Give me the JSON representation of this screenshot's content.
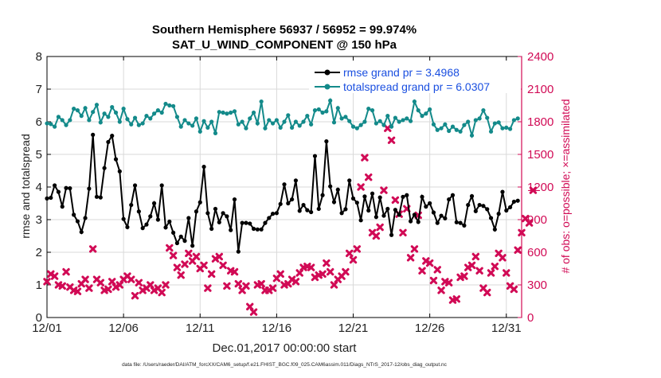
{
  "chart_data": {
    "type": "line",
    "title": [
      "Southern Hemisphere 56937 / 56952 = 99.974%",
      "SAT_U_WIND_COMPONENT @ 150 hPa"
    ],
    "xlabel": "Dec.01,2017 00:00:00 start",
    "ylabel_left": "rmse and totalspread",
    "ylabel_right": "# of obs: o=possible; ×=assimilated",
    "footnote": "data file: /Users/raeder/DAI/ATM_forcXX/CAM6_setup/f.e21.FHIST_BGC.f09_025.CAM6assim.011/Diags_NTrS_2017-12/obs_diag_output.nc",
    "xlim": [
      1,
      32
    ],
    "ylim_left": [
      0,
      8
    ],
    "ylim_right": [
      0,
      2400
    ],
    "grid": true,
    "legend_position": "top-right",
    "x_ticks": [
      1,
      6,
      11,
      16,
      21,
      26,
      31
    ],
    "x_tick_labels": [
      "12/01",
      "12/06",
      "12/11",
      "12/16",
      "12/21",
      "12/26",
      "12/31"
    ],
    "y_ticks_left": [
      0,
      1,
      2,
      3,
      4,
      5,
      6,
      7,
      8
    ],
    "y_ticks_right": [
      0,
      300,
      600,
      900,
      1200,
      1500,
      1800,
      2100,
      2400
    ],
    "series": [
      {
        "name": "rmse grand pr = 3.4968",
        "axis": "left",
        "color": "#000000",
        "x_start": 1.0,
        "x_step": 0.25,
        "values": [
          3.65,
          3.67,
          4.05,
          3.85,
          3.4,
          3.97,
          3.96,
          3.15,
          2.95,
          2.62,
          3.05,
          3.95,
          5.6,
          3.7,
          3.68,
          4.58,
          5.38,
          5.57,
          4.85,
          4.48,
          3.02,
          2.77,
          3.45,
          4.05,
          3.25,
          2.74,
          2.85,
          3.1,
          3.5,
          3.0,
          4.05,
          2.76,
          2.94,
          2.6,
          2.28,
          2.48,
          2.35,
          3.05,
          2.2,
          3.25,
          3.53,
          4.62,
          3.2,
          2.72,
          3.33,
          2.92,
          3.2,
          3.1,
          2.68,
          3.62,
          2.02,
          2.9,
          2.9,
          2.88,
          2.72,
          2.7,
          2.7,
          2.9,
          3.05,
          3.18,
          3.2,
          3.48,
          4.08,
          3.5,
          3.62,
          4.2,
          3.27,
          3.45,
          3.29,
          3.23,
          4.95,
          3.33,
          3.75,
          5.4,
          4.02,
          3.54,
          3.92,
          3.2,
          3.32,
          4.2,
          3.65,
          3.52,
          2.98,
          3.71,
          3.28,
          3.8,
          3.08,
          3.68,
          3.12,
          3.33,
          2.53,
          3.3,
          3.15,
          3.7,
          3.75,
          2.95,
          3.15,
          2.93,
          3.7,
          3.4,
          3.5,
          3.22,
          2.9,
          3.12,
          3.04,
          3.62,
          3.75,
          2.92,
          2.9,
          2.82,
          3.45,
          3.72,
          3.26,
          3.45,
          3.42,
          3.32,
          3.05,
          2.7,
          3.18,
          3.85,
          3.28,
          3.38,
          3.55,
          3.58
        ]
      },
      {
        "name": "totalspread grand pr = 6.0307",
        "axis": "left",
        "color": "#138a8a",
        "x_start": 1.0,
        "x_step": 0.25,
        "values": [
          5.95,
          5.93,
          5.85,
          6.15,
          6.05,
          5.9,
          6.05,
          6.4,
          6.35,
          6.18,
          6.42,
          6.05,
          6.3,
          6.52,
          5.98,
          6.25,
          6.15,
          6.45,
          6.28,
          6.0,
          6.4,
          6.08,
          5.92,
          6.12,
          5.9,
          5.95,
          6.18,
          6.1,
          6.25,
          6.35,
          6.28,
          6.55,
          6.5,
          6.48,
          6.15,
          5.85,
          6.05,
          5.95,
          5.88,
          6.1,
          5.7,
          6.02,
          5.82,
          6.0,
          5.65,
          6.3,
          6.28,
          6.25,
          6.28,
          6.32,
          5.92,
          6.0,
          5.8,
          6.1,
          6.28,
          5.95,
          6.62,
          5.8,
          6.05,
          5.95,
          6.05,
          5.82,
          6.0,
          6.2,
          5.82,
          6.0,
          5.88,
          6.0,
          6.18,
          5.92,
          6.35,
          6.38,
          6.28,
          6.32,
          6.65,
          5.98,
          6.42,
          6.1,
          6.15,
          6.02,
          5.85,
          5.8,
          5.9,
          6.0,
          6.4,
          6.35,
          5.95,
          6.02,
          5.9,
          6.18,
          5.85,
          6.12,
          6.0,
          6.05,
          6.1,
          6.02,
          6.62,
          6.35,
          6.18,
          6.25,
          6.38,
          5.92,
          5.75,
          5.8,
          5.92,
          5.72,
          5.85,
          5.75,
          5.7,
          5.9,
          6.0,
          5.58,
          6.05,
          6.1,
          6.35,
          6.12,
          5.7,
          5.95,
          5.98,
          5.8,
          5.82,
          5.78,
          6.05,
          6.1
        ]
      },
      {
        "name": "obs possible (o)",
        "axis": "right",
        "color": "#d10a55",
        "marker": "o"
      },
      {
        "name": "obs assimilated (×)",
        "axis": "right",
        "color": "#d10a55",
        "marker": "x",
        "x_start": 1.0,
        "x_step": 0.25,
        "values": [
          330,
          400,
          380,
          300,
          290,
          420,
          280,
          250,
          240,
          310,
          350,
          270,
          630,
          350,
          320,
          250,
          260,
          330,
          280,
          300,
          350,
          380,
          350,
          200,
          320,
          250,
          270,
          300,
          250,
          270,
          230,
          300,
          640,
          570,
          460,
          390,
          490,
          590,
          520,
          560,
          450,
          480,
          270,
          400,
          540,
          560,
          480,
          290,
          430,
          420,
          310,
          250,
          290,
          100,
          50,
          300,
          310,
          250,
          250,
          270,
          360,
          400,
          300,
          310,
          350,
          330,
          410,
          460,
          470,
          460,
          370,
          390,
          400,
          500,
          420,
          300,
          350,
          380,
          420,
          590,
          530,
          630,
          1200,
          1470,
          1290,
          780,
          750,
          830,
          1170,
          1740,
          1630,
          1080,
          950,
          780,
          1000,
          550,
          630,
          940,
          430,
          520,
          500,
          340,
          440,
          250,
          330,
          320,
          160,
          170,
          370,
          380,
          460,
          480,
          560,
          430,
          270,
          230,
          410,
          470,
          590,
          550,
          410,
          290,
          260,
          620,
          780,
          910,
          870,
          1170
        ]
      }
    ]
  }
}
